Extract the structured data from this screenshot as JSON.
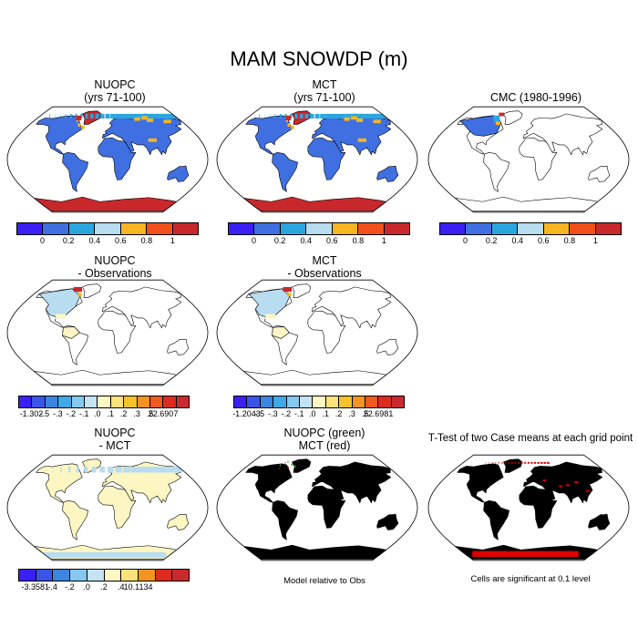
{
  "title": "MAM SNOWDP (m)",
  "panels": {
    "p1": {
      "title1": "NUOPC",
      "title2": "(yrs 71-100)"
    },
    "p2": {
      "title1": "MCT",
      "title2": "(yrs 71-100)"
    },
    "p3": {
      "title1": "CMC (1980-1996)",
      "title2": ""
    },
    "p4": {
      "title1": "NUOPC",
      "title2": "- Observations"
    },
    "p5": {
      "title1": "MCT",
      "title2": "- Observations"
    },
    "p7": {
      "title1": "NUOPC",
      "title2": "- MCT"
    },
    "p8": {
      "title1": "NUOPC (green)",
      "title2": "MCT (red)"
    },
    "p9": {
      "title1": "T-Test of two Case means at each grid point",
      "title2": ""
    }
  },
  "notes": {
    "p8": "Model relative to Obs",
    "p9": "Cells are significant at 0.1 level"
  },
  "colorbars": {
    "abs": {
      "colors": [
        "#3b1ff5",
        "#3f6fe0",
        "#2aa6df",
        "#b8dcf0",
        "#f6b521",
        "#f2501a",
        "#c8282b"
      ],
      "labels": [
        "0",
        "0.2",
        "0.4",
        "0.6",
        "0.8",
        "1"
      ]
    },
    "diff1": {
      "colors": [
        "#3b1ff5",
        "#3a55e6",
        "#3b86e0",
        "#3fa8e6",
        "#86c8ef",
        "#c4e4f5",
        "#fdf6c3",
        "#fbe27a",
        "#f7c12a",
        "#f2941f",
        "#ef5a1d",
        "#df2a1e",
        "#c92a2f"
      ],
      "labels": [
        "-1.302",
        "-.5",
        "-.3",
        "-.2",
        "-.1",
        ".0",
        ".1",
        ".2",
        ".3",
        ".5",
        "22.6907"
      ]
    },
    "diff2": {
      "colors": [
        "#3b1ff5",
        "#3a55e6",
        "#3b86e0",
        "#3fa8e6",
        "#86c8ef",
        "#c4e4f5",
        "#fdf6c3",
        "#fbe27a",
        "#f7c12a",
        "#f2941f",
        "#ef5a1d",
        "#df2a1e",
        "#c92a2f"
      ],
      "labels": [
        "-1.2043",
        "-.5",
        "-.3",
        "-.2",
        "-.1",
        ".0",
        ".1",
        ".2",
        ".3",
        ".5",
        "22.6981"
      ]
    },
    "diff3": {
      "colors": [
        "#3b1ff5",
        "#3a55e6",
        "#3b86e0",
        "#86c8ef",
        "#c4e4f5",
        "#fdf6c3",
        "#fbe27a",
        "#f2941f",
        "#df2a1e",
        "#c92a2f"
      ],
      "labels": [
        "-3.3581",
        "-.4",
        "-.2",
        ".0",
        ".2",
        ".4",
        "10.1134"
      ]
    }
  },
  "colors": {
    "ocean": "#ffffff",
    "land_abs": "#3f6fe0",
    "snow_high": "#c8282b",
    "snow_mid": "#f6b521",
    "snow_light": "#2aa6df",
    "diff_pos": "#fdf6c3",
    "diff_neg": "#b8dcf0",
    "sig_red": "#e00000",
    "sig_green": "#1fb01f"
  }
}
